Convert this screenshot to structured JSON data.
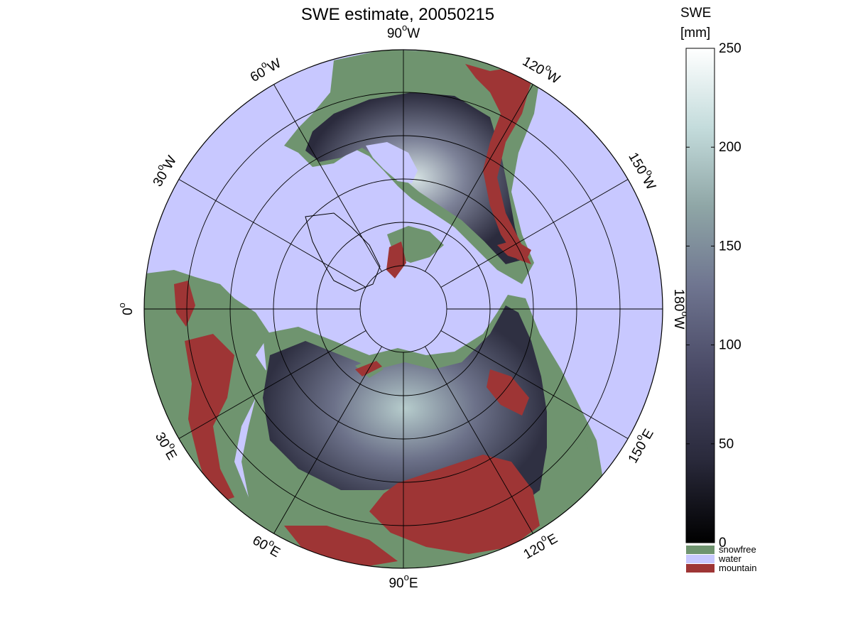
{
  "title": "SWE estimate, 20050215",
  "colorbar": {
    "label_line1": "SWE",
    "label_line2": "[mm]",
    "ticks": [
      "250",
      "200",
      "150",
      "100",
      "50",
      "0"
    ],
    "range": [
      0,
      250
    ],
    "colors": [
      "#000000",
      "#2a2a3c",
      "#4a4a66",
      "#6f7590",
      "#8fa6a6",
      "#c4dcdc",
      "#ffffff"
    ]
  },
  "categories": [
    {
      "label": "snowfree",
      "color": "#6f946f"
    },
    {
      "label": "water",
      "color": "#c8c8ff"
    },
    {
      "label": "mountain",
      "color": "#9e3535"
    }
  ],
  "longitude_labels": [
    {
      "num": "90",
      "deg": "o",
      "dir": "W"
    },
    {
      "num": "120",
      "deg": "o",
      "dir": "W"
    },
    {
      "num": "150",
      "deg": "o",
      "dir": "W"
    },
    {
      "num": "180",
      "deg": "o",
      "dir": "W"
    },
    {
      "num": "150",
      "deg": "o",
      "dir": "E"
    },
    {
      "num": "120",
      "deg": "o",
      "dir": "E"
    },
    {
      "num": "90",
      "deg": "o",
      "dir": "E"
    },
    {
      "num": "60",
      "deg": "o",
      "dir": "E"
    },
    {
      "num": "30",
      "deg": "o",
      "dir": "E"
    },
    {
      "num": "0",
      "deg": "o",
      "dir": ""
    },
    {
      "num": "30",
      "deg": "o",
      "dir": "W"
    },
    {
      "num": "60",
      "deg": "o",
      "dir": "W"
    }
  ],
  "map_colors": {
    "water": "#c8c8ff",
    "snowfree": "#6f946f",
    "mountain": "#9e3535",
    "swe_low": "#2b2b3d",
    "swe_mid": "#6c7189",
    "swe_high": "#e2ecec"
  }
}
